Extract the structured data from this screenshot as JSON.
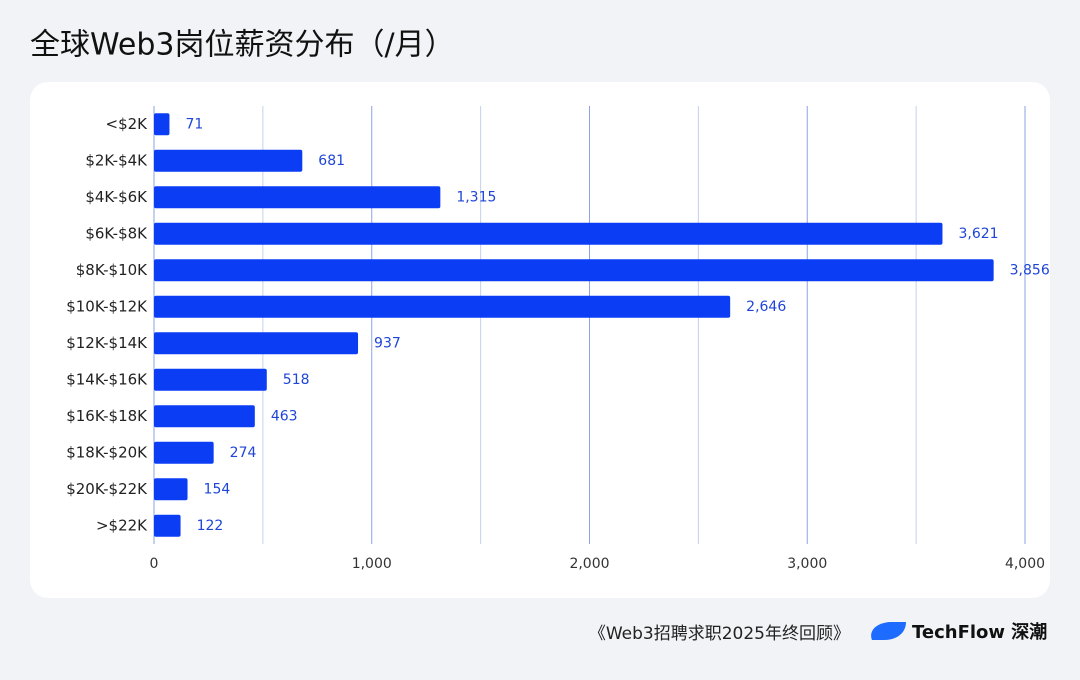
{
  "chart_data": {
    "type": "barh",
    "title": "全球Web3岗位薪资分布（/月）",
    "categories": [
      "<$2K",
      "$2K-$4K",
      "$4K-$6K",
      "$6K-$8K",
      "$8K-$10K",
      "$10K-$12K",
      "$12K-$14K",
      "$14K-$16K",
      "$16K-$18K",
      "$18K-$20K",
      "$20K-$22K",
      ">$22K"
    ],
    "values": [
      71,
      681,
      1315,
      3621,
      3856,
      2646,
      937,
      518,
      463,
      274,
      154,
      122
    ],
    "value_labels": [
      "71",
      "681",
      "1,315",
      "3,621",
      "3,856",
      "2,646",
      "937",
      "518",
      "463",
      "274",
      "154",
      "122"
    ],
    "color": "#0b3df5",
    "label_color": "#1f45d8",
    "xlim": [
      0,
      4000
    ],
    "xticks": [
      0,
      {
        "value": 1000,
        "label": "1,000"
      },
      {
        "value": 2000,
        "label": "2,000"
      },
      {
        "value": 3000,
        "label": "3,000"
      },
      {
        "value": 4000,
        "label": "4,000"
      }
    ],
    "minor_xticks": [
      500,
      1500,
      2500,
      3500
    ],
    "grid": true
  },
  "footer": {
    "source": "《Web3招聘求职2025年终回顾》",
    "brand": "TechFlow 深潮"
  }
}
